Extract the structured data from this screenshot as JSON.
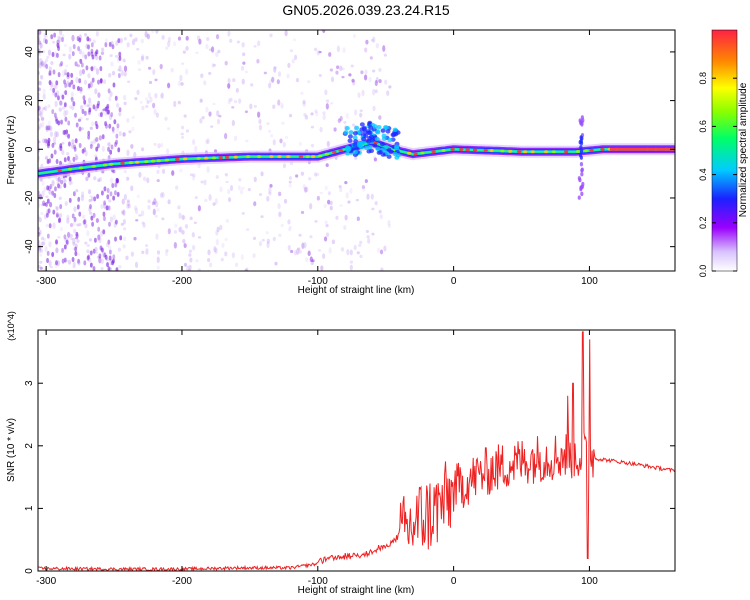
{
  "title": "GN05.2026.039.23.24.R15",
  "chart_data": [
    {
      "type": "heatmap",
      "xlabel": "Height of straight line (km)",
      "ylabel": "Frequency (Hz)",
      "xlim": [
        -306,
        163
      ],
      "ylim": [
        -50,
        49
      ],
      "x_ticks": [
        "-300",
        "-200",
        "-100",
        "0",
        "100"
      ],
      "y_ticks": [
        "40",
        "20",
        "0",
        "-20",
        "-40"
      ],
      "x_tick_values": [
        -300,
        -200,
        -100,
        0,
        100
      ],
      "y_tick_values": [
        40,
        20,
        0,
        -20,
        -40
      ],
      "colorbar": {
        "label": "Normalized spectral amplitude",
        "range": [
          0,
          1
        ],
        "ticks": [
          "0.0",
          "0.2",
          "0.4",
          "0.6",
          "0.8"
        ],
        "tick_values": [
          0,
          0.2,
          0.4,
          0.6,
          0.8
        ]
      },
      "ridge": [
        {
          "x": -306,
          "y": -10
        },
        {
          "x": -280,
          "y": -8
        },
        {
          "x": -250,
          "y": -6
        },
        {
          "x": -200,
          "y": -4
        },
        {
          "x": -150,
          "y": -3
        },
        {
          "x": -110,
          "y": -3
        },
        {
          "x": -100,
          "y": -3
        },
        {
          "x": -80,
          "y": 0
        },
        {
          "x": -60,
          "y": 3
        },
        {
          "x": -45,
          "y": 0
        },
        {
          "x": -30,
          "y": -2
        },
        {
          "x": -15,
          "y": -1
        },
        {
          "x": 0,
          "y": 0
        },
        {
          "x": 50,
          "y": -1
        },
        {
          "x": 90,
          "y": -1
        },
        {
          "x": 110,
          "y": 0
        },
        {
          "x": 163,
          "y": 0
        }
      ]
    },
    {
      "type": "line",
      "xlabel": "Height of straight line (km)",
      "ylabel": "SNR (10 * v/v)",
      "y_multiplier": "(x10^4)",
      "xlim": [
        -306,
        163
      ],
      "ylim": [
        0,
        3.85
      ],
      "x_ticks": [
        "-300",
        "-200",
        "-100",
        "0",
        "100"
      ],
      "y_ticks": [
        "0",
        "1",
        "2",
        "3"
      ],
      "x_tick_values": [
        -300,
        -200,
        -100,
        0,
        100
      ],
      "y_tick_values": [
        0,
        1,
        2,
        3
      ],
      "color": "#ee2222",
      "series_envelope": [
        {
          "x": -306,
          "y": 0.04
        },
        {
          "x": -250,
          "y": 0.03
        },
        {
          "x": -200,
          "y": 0.03
        },
        {
          "x": -160,
          "y": 0.05
        },
        {
          "x": -120,
          "y": 0.05
        },
        {
          "x": -90,
          "y": 0.15
        },
        {
          "x": -60,
          "y": 0.25
        },
        {
          "x": -45,
          "y": 0.4
        },
        {
          "x": -35,
          "y": 0.7
        },
        {
          "x": -25,
          "y": 0.9
        },
        {
          "x": -15,
          "y": 1.0
        },
        {
          "x": 0,
          "y": 1.3
        },
        {
          "x": 20,
          "y": 1.55
        },
        {
          "x": 40,
          "y": 1.7
        },
        {
          "x": 60,
          "y": 1.8
        },
        {
          "x": 80,
          "y": 1.85
        },
        {
          "x": 100,
          "y": 1.85
        },
        {
          "x": 104,
          "y": 1.8
        },
        {
          "x": 130,
          "y": 1.72
        },
        {
          "x": 163,
          "y": 1.6
        }
      ],
      "peaks": [
        {
          "x": 95,
          "y": 3.82
        },
        {
          "x": 100,
          "y": 3.7
        },
        {
          "x": 88,
          "y": 3.0
        },
        {
          "x": 84,
          "y": 2.8
        }
      ]
    }
  ]
}
